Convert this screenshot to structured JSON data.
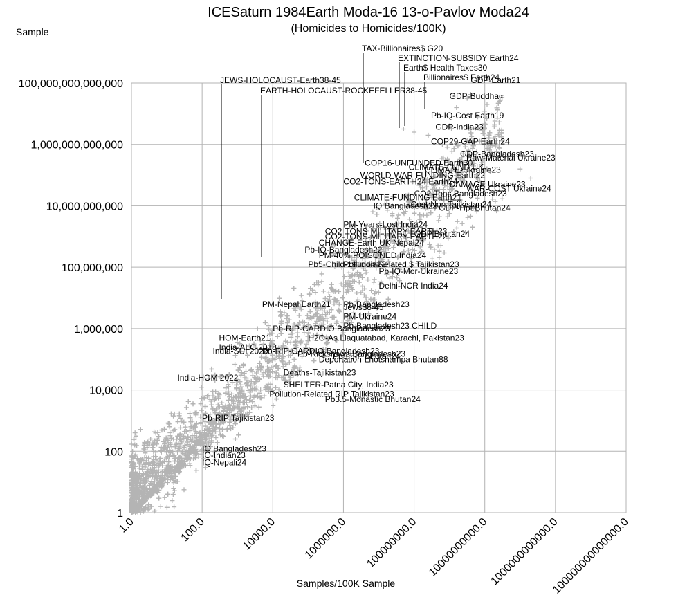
{
  "chart_data": {
    "type": "scatter",
    "title": "ICESaturn 1984Earth Moda-16 13-o-Pavlov Moda24",
    "subtitle": "(Homicides to Homicides/100K)",
    "ylabel": "Sample",
    "xlabel": "Samples/100K Sample",
    "x_scale": "log10",
    "y_scale": "log10",
    "xlim": [
      1,
      100000000000000.0
    ],
    "ylim": [
      1,
      100000000000000.0
    ],
    "x_ticks": [
      "1.0",
      "100.0",
      "10000.0",
      "1000000.0",
      "100000000.0",
      "10000000000.0",
      "1000000000000.0",
      "100000000000000.0"
    ],
    "y_ticks": [
      "1",
      "100",
      "10,000",
      "1,000,000",
      "100,000,000",
      "10,000,000,000",
      "1,000,000,000,000",
      "100,000,000,000,000"
    ],
    "grid": true,
    "marker": "+",
    "marker_color": "#b4b4b4",
    "point_count_estimate": 4000,
    "annotations": [
      {
        "text": "TAX-Billionaires$ G20",
        "x": 1200000.0,
        "y": 3000000000000.0
      },
      {
        "text": "EXTINCTION-SUBSIDY Earth24",
        "x": 50000000.0,
        "y": 50000000000000.0
      },
      {
        "text": "Earth$ Health Taxes30",
        "x": 70000000.0,
        "y": 40000000000000.0
      },
      {
        "text": "Billionaires$ Earth24",
        "x": 200000000.0,
        "y": 30000000000000.0
      },
      {
        "text": "JEWS-HOLOCAUST-Earth38-45",
        "x": 250.0,
        "y": 2000000.0
      },
      {
        "text": "EARTH-HOLOCAUST-ROCKEFELLER38-45",
        "x": 3000.0,
        "y": 200000000.0
      },
      {
        "text": "GDP-Earth21",
        "x": 4000000000.0,
        "y": 100000000000000.0
      },
      {
        "text": "GDP-Buddha∞",
        "x": 1000000000.0,
        "y": 30000000000000.0
      },
      {
        "text": "Pb-IQ-Cost Earth19",
        "x": 300000000.0,
        "y": 7000000000000.0
      },
      {
        "text": "GDP-India23",
        "x": 400000000.0,
        "y": 3000000000000.0
      },
      {
        "text": "COP29-GAP Earth24",
        "x": 300000000.0,
        "y": 1000000000000.0
      },
      {
        "text": "GDP-Bangladesh23",
        "x": 2000000000.0,
        "y": 400000000000.0
      },
      {
        "text": "Raw-Material Ukraine23",
        "x": 3000000000.0,
        "y": 300000000000.0
      },
      {
        "text": "COP16-UNFUNDED Earth30",
        "x": 4000000.0,
        "y": 200000000000.0
      },
      {
        "text": "CLIMATE-FUND UK",
        "x": 70000000.0,
        "y": 150000000000.0
      },
      {
        "text": "CLIMATE-Ukraine23",
        "x": 200000000.0,
        "y": 120000000000.0
      },
      {
        "text": "WORLD-WAR-FUNDING Earth22",
        "x": 3000000.0,
        "y": 80000000000.0
      },
      {
        "text": "CO2-TONS-EARTH24 Earth24",
        "x": 1000000.0,
        "y": 50000000000.0
      },
      {
        "text": "DAMAGE Ukraine23",
        "x": 1000000000.0,
        "y": 40000000000.0
      },
      {
        "text": "WAR-COST Ukraine24",
        "x": 3000000000.0,
        "y": 30000000000.0
      },
      {
        "text": "CO2-Tons Bangladesh23",
        "x": 100000000.0,
        "y": 20000000000.0
      },
      {
        "text": "CLIMATE-FUNDING Earth21",
        "x": 2000000.0,
        "y": 15000000000.0
      },
      {
        "text": "IQ Bangladesh23",
        "x": 7000000.0,
        "y": 8000000000.0
      },
      {
        "text": "Cost-Non Tajikistan24",
        "x": 80000000.0,
        "y": 9000000000.0
      },
      {
        "text": "GDP-Hpt Bhutan24",
        "x": 500000000.0,
        "y": 7000000000.0
      },
      {
        "text": "PM-Years-Lost India24",
        "x": 1000000.0,
        "y": 2000000000.0
      },
      {
        "text": "CO2-TONS-MILITARY-EARTH23",
        "x": 300000.0,
        "y": 1200000000.0
      },
      {
        "text": "CO2-TONS-MILITARY-EARTH22",
        "x": 300000.0,
        "y": 800000000.0
      },
      {
        "text": "GDP Bhutan24",
        "x": 100000000.0,
        "y": 1000000000.0
      },
      {
        "text": "CHANGE-Earth UK Nepal24",
        "x": 200000.0,
        "y": 500000000.0
      },
      {
        "text": "Pb-IQ-Bangladesh22",
        "x": 80000.0,
        "y": 300000000.0
      },
      {
        "text": "PM-40% POISONED India24",
        "x": 200000.0,
        "y": 200000000.0
      },
      {
        "text": "Pb5-Child-19 India22",
        "x": 100000.0,
        "y": 100000000.0
      },
      {
        "text": "Pollution-Related $ Tajikistan23",
        "x": 1000000.0,
        "y": 100000000.0
      },
      {
        "text": "Pb-IQ-Mor-Ukraine23",
        "x": 10000000.0,
        "y": 60000000.0
      },
      {
        "text": "Delhi-NCR India24",
        "x": 10000000.0,
        "y": 20000000.0
      },
      {
        "text": "PM-Nepal Earth21",
        "x": 5000.0,
        "y": 5000000.0
      },
      {
        "text": "Pb-Bangladesh23",
        "x": 1000000.0,
        "y": 5000000.0
      },
      {
        "text": "Jews38-45",
        "x": 1000000.0,
        "y": 4000000.0
      },
      {
        "text": "PM-Ukraine24",
        "x": 1000000.0,
        "y": 2000000.0
      },
      {
        "text": "Pb-Bangladesh23 CHILD",
        "x": 1000000.0,
        "y": 1000000.0
      },
      {
        "text": "Pb-RIP-CARDIO Bangladesh23",
        "x": 10000.0,
        "y": 800000.0
      },
      {
        "text": "HOM-Earth21",
        "x": 300.0,
        "y": 400000.0
      },
      {
        "text": "H2O-As Liaquatabad, Karachi, Pakistan23",
        "x": 100000.0,
        "y": 400000.0
      },
      {
        "text": "India-ALC 2018",
        "x": 300.0,
        "y": 200000.0
      },
      {
        "text": "India-SUI 2020",
        "x": 200.0,
        "y": 150000.0
      },
      {
        "text": "Pb-RIP-CARDIO Bangladesh23",
        "x": 5000.0,
        "y": 150000.0
      },
      {
        "text": "Pb-Rickshaws Bangladesh23",
        "x": 50000.0,
        "y": 120000.0
      },
      {
        "text": "Pb3.5-F Bhutan24",
        "x": 500000.0,
        "y": 100000.0
      },
      {
        "text": "Deportation-Lhotshampa Bhutan88",
        "x": 200000.0,
        "y": 80000.0
      },
      {
        "text": "Deaths-Tajikistan23",
        "x": 20000.0,
        "y": 30000.0
      },
      {
        "text": "India-HOM 2022",
        "x": 20.0,
        "y": 20000.0
      },
      {
        "text": "SHELTER-Patna City, India23",
        "x": 20000.0,
        "y": 12000.0
      },
      {
        "text": "Pollution-Related RIP Tajikistan23",
        "x": 8000.0,
        "y": 6000.0
      },
      {
        "text": "Pb3.5-Monastic Bhutan24",
        "x": 300000.0,
        "y": 4000.0
      },
      {
        "text": "Pb-RIP Tajikistan23",
        "x": 100.0,
        "y": 1000.0
      },
      {
        "text": "IQ Bangladesh23",
        "x": 100.0,
        "y": 100.0
      },
      {
        "text": "IQ-Indian23",
        "x": 100.0,
        "y": 60
      },
      {
        "text": "IQ-Nepali24",
        "x": 100.0,
        "y": 35
      }
    ]
  }
}
